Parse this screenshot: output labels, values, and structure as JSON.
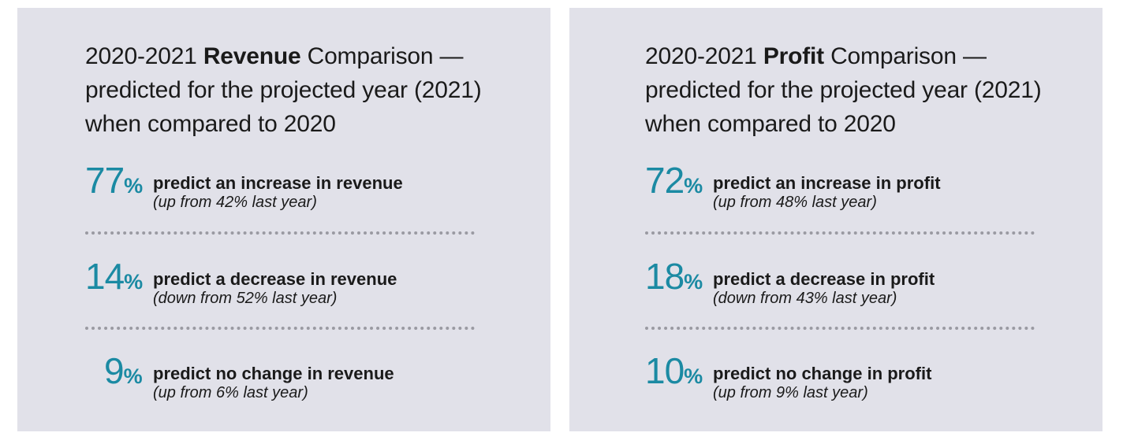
{
  "revenue": {
    "heading_pre": "2020-2021 ",
    "heading_bold": "Revenue",
    "heading_post": " Comparison — predicted for the projected year (2021) when compared to 2020",
    "stats": [
      {
        "value": "77",
        "unit": "%",
        "text": "predict an increase in revenue",
        "note": "(up from 42% last year)"
      },
      {
        "value": "14",
        "unit": "%",
        "text": "predict a decrease in revenue",
        "note": "(down from 52% last year)"
      },
      {
        "value": "9",
        "unit": "%",
        "text": "predict no change in revenue",
        "note": "(up from 6% last year)"
      }
    ]
  },
  "profit": {
    "heading_pre": "2020-2021 ",
    "heading_bold": "Profit",
    "heading_post": " Comparison — predicted for the projected year (2021) when compared to 2020",
    "stats": [
      {
        "value": "72",
        "unit": "%",
        "text": "predict an increase in profit",
        "note": "(up from 48% last year)"
      },
      {
        "value": "18",
        "unit": "%",
        "text": "predict a decrease in profit",
        "note": "(down from 43% last year)"
      },
      {
        "value": "10",
        "unit": "%",
        "text": "predict no change in profit",
        "note": "(up from 9% last year)"
      }
    ]
  },
  "colors": {
    "accent": "#1b8aa3",
    "panel_bg": "#e1e1e9",
    "text": "#1a1a1a"
  }
}
